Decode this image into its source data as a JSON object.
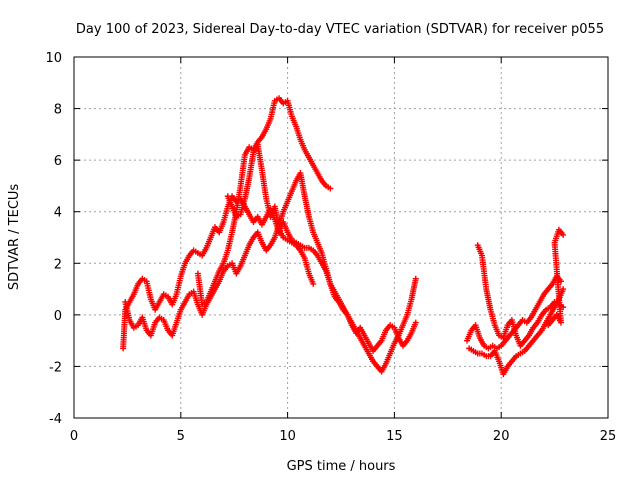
{
  "chart_data": {
    "type": "scatter",
    "title": "Day 100 of 2023, Sidereal Day-to-day VTEC variation (SDTVAR) for receiver p055",
    "xlabel": "GPS time / hours",
    "ylabel": "SDTVAR / TECUs",
    "xlim": [
      0,
      25
    ],
    "ylim": [
      -4,
      10
    ],
    "x_ticks": [
      0,
      5,
      10,
      15,
      20,
      25
    ],
    "y_ticks": [
      -4,
      -2,
      0,
      2,
      4,
      6,
      8,
      10
    ],
    "grid": true,
    "marker": "+",
    "color": "#ff0000",
    "series": [
      {
        "points": [
          [
            2.3,
            -1.3
          ],
          [
            2.4,
            0.2
          ],
          [
            2.6,
            0.5
          ],
          [
            2.8,
            0.8
          ],
          [
            3.0,
            1.2
          ],
          [
            3.2,
            1.4
          ],
          [
            3.4,
            1.3
          ],
          [
            3.6,
            0.6
          ],
          [
            3.8,
            0.2
          ],
          [
            4.0,
            0.5
          ],
          [
            4.2,
            0.8
          ],
          [
            4.4,
            0.7
          ],
          [
            4.6,
            0.4
          ],
          [
            4.8,
            0.8
          ],
          [
            5.0,
            1.5
          ],
          [
            5.2,
            2.0
          ],
          [
            5.4,
            2.3
          ],
          [
            5.6,
            2.5
          ],
          [
            5.8,
            2.4
          ],
          [
            6.0,
            2.3
          ],
          [
            6.2,
            2.6
          ],
          [
            6.4,
            3.0
          ],
          [
            6.6,
            3.4
          ],
          [
            6.8,
            3.2
          ],
          [
            7.0,
            3.6
          ],
          [
            7.2,
            4.2
          ],
          [
            7.4,
            4.6
          ],
          [
            7.6,
            4.4
          ],
          [
            7.8,
            4.5
          ],
          [
            8.0,
            4.2
          ],
          [
            8.2,
            3.9
          ],
          [
            8.4,
            3.6
          ],
          [
            8.6,
            3.8
          ],
          [
            8.8,
            3.5
          ],
          [
            9.0,
            3.8
          ],
          [
            9.2,
            4.1
          ],
          [
            9.4,
            3.7
          ],
          [
            9.6,
            3.2
          ],
          [
            9.8,
            3.6
          ],
          [
            10.0,
            3.2
          ],
          [
            10.2,
            2.9
          ],
          [
            10.4,
            2.8
          ],
          [
            10.6,
            2.7
          ],
          [
            10.8,
            2.6
          ],
          [
            11.0,
            2.6
          ],
          [
            11.2,
            2.5
          ],
          [
            11.4,
            2.3
          ],
          [
            11.6,
            2.0
          ],
          [
            11.8,
            1.7
          ],
          [
            12.0,
            1.2
          ],
          [
            12.2,
            0.9
          ],
          [
            12.4,
            0.6
          ],
          [
            12.6,
            0.3
          ],
          [
            12.8,
            0.0
          ],
          [
            13.0,
            -0.3
          ],
          [
            13.2,
            -0.6
          ],
          [
            13.4,
            -0.9
          ],
          [
            13.6,
            -1.2
          ],
          [
            13.8,
            -1.5
          ],
          [
            14.0,
            -1.8
          ],
          [
            14.2,
            -2.0
          ],
          [
            14.4,
            -2.2
          ],
          [
            14.6,
            -1.9
          ],
          [
            14.8,
            -1.5
          ],
          [
            15.0,
            -1.1
          ],
          [
            15.2,
            -0.8
          ],
          [
            15.4,
            -0.4
          ],
          [
            15.6,
            0.0
          ],
          [
            15.8,
            0.6
          ],
          [
            16.0,
            1.4
          ]
        ]
      },
      {
        "points": [
          [
            2.4,
            0.5
          ],
          [
            2.6,
            -0.2
          ],
          [
            2.8,
            -0.5
          ],
          [
            3.0,
            -0.4
          ],
          [
            3.2,
            -0.1
          ],
          [
            3.4,
            -0.6
          ],
          [
            3.6,
            -0.8
          ],
          [
            3.8,
            -0.3
          ],
          [
            4.0,
            -0.1
          ],
          [
            4.2,
            -0.2
          ],
          [
            4.4,
            -0.6
          ],
          [
            4.6,
            -0.8
          ],
          [
            4.8,
            -0.3
          ],
          [
            5.0,
            0.2
          ],
          [
            5.2,
            0.5
          ],
          [
            5.4,
            0.8
          ],
          [
            5.6,
            0.9
          ],
          [
            5.8,
            0.4
          ],
          [
            6.0,
            0.0
          ],
          [
            6.2,
            0.4
          ],
          [
            6.4,
            0.7
          ],
          [
            6.6,
            1.0
          ],
          [
            6.8,
            1.3
          ],
          [
            7.0,
            1.7
          ],
          [
            7.2,
            1.9
          ],
          [
            7.4,
            2.0
          ],
          [
            7.6,
            1.6
          ],
          [
            7.8,
            1.9
          ],
          [
            8.0,
            2.3
          ],
          [
            8.2,
            2.7
          ],
          [
            8.4,
            3.0
          ],
          [
            8.6,
            3.2
          ],
          [
            8.8,
            2.8
          ],
          [
            9.0,
            2.5
          ],
          [
            9.2,
            2.7
          ],
          [
            9.4,
            3.0
          ],
          [
            9.6,
            3.5
          ],
          [
            9.8,
            4.0
          ],
          [
            10.0,
            4.4
          ],
          [
            10.2,
            4.8
          ],
          [
            10.4,
            5.2
          ],
          [
            10.6,
            5.5
          ],
          [
            10.8,
            4.6
          ],
          [
            11.0,
            3.8
          ],
          [
            11.2,
            3.2
          ],
          [
            11.4,
            2.8
          ],
          [
            11.6,
            2.4
          ],
          [
            11.8,
            1.8
          ],
          [
            12.0,
            1.2
          ],
          [
            12.2,
            0.7
          ],
          [
            12.4,
            0.5
          ],
          [
            12.6,
            0.2
          ],
          [
            12.8,
            0.0
          ],
          [
            13.0,
            -0.4
          ],
          [
            13.2,
            -0.7
          ],
          [
            13.4,
            -0.5
          ],
          [
            13.6,
            -0.8
          ],
          [
            13.8,
            -1.1
          ],
          [
            14.0,
            -1.4
          ],
          [
            14.2,
            -1.2
          ],
          [
            14.4,
            -1.0
          ],
          [
            14.6,
            -0.6
          ],
          [
            14.8,
            -0.4
          ],
          [
            15.0,
            -0.5
          ],
          [
            15.2,
            -0.9
          ],
          [
            15.4,
            -1.2
          ],
          [
            15.6,
            -1.0
          ],
          [
            15.8,
            -0.7
          ],
          [
            16.0,
            -0.3
          ]
        ]
      },
      {
        "points": [
          [
            5.8,
            1.6
          ],
          [
            6.0,
            0.4
          ],
          [
            6.2,
            0.5
          ],
          [
            6.4,
            0.9
          ],
          [
            6.6,
            1.3
          ],
          [
            6.8,
            1.7
          ],
          [
            7.0,
            2.0
          ],
          [
            7.2,
            2.5
          ],
          [
            7.4,
            3.2
          ],
          [
            7.6,
            4.0
          ],
          [
            7.8,
            5.0
          ],
          [
            8.0,
            6.2
          ],
          [
            8.2,
            6.5
          ],
          [
            8.4,
            6.4
          ],
          [
            8.6,
            6.7
          ],
          [
            8.8,
            6.9
          ],
          [
            9.0,
            7.2
          ],
          [
            9.2,
            7.6
          ],
          [
            9.4,
            8.3
          ],
          [
            9.6,
            8.4
          ],
          [
            9.8,
            8.2
          ],
          [
            10.0,
            8.3
          ],
          [
            10.2,
            7.7
          ],
          [
            10.4,
            7.3
          ],
          [
            10.6,
            6.8
          ],
          [
            10.8,
            6.4
          ],
          [
            11.0,
            6.1
          ],
          [
            11.2,
            5.8
          ],
          [
            11.4,
            5.5
          ],
          [
            11.6,
            5.2
          ],
          [
            11.8,
            5.0
          ],
          [
            12.0,
            4.9
          ]
        ]
      },
      {
        "points": [
          [
            7.2,
            4.6
          ],
          [
            7.4,
            4.2
          ],
          [
            7.6,
            3.8
          ],
          [
            7.8,
            3.9
          ],
          [
            8.0,
            4.5
          ],
          [
            8.2,
            5.3
          ],
          [
            8.4,
            6.3
          ],
          [
            8.6,
            6.6
          ],
          [
            8.8,
            5.6
          ],
          [
            9.0,
            4.5
          ],
          [
            9.2,
            3.8
          ],
          [
            9.4,
            4.2
          ],
          [
            9.6,
            3.3
          ],
          [
            9.8,
            3.0
          ],
          [
            10.0,
            2.9
          ],
          [
            10.2,
            2.8
          ],
          [
            10.4,
            2.7
          ],
          [
            10.6,
            2.5
          ],
          [
            10.8,
            2.2
          ],
          [
            11.0,
            1.6
          ],
          [
            11.2,
            1.2
          ]
        ]
      },
      {
        "points": [
          [
            18.4,
            -1.0
          ],
          [
            18.6,
            -0.6
          ],
          [
            18.8,
            -0.4
          ],
          [
            19.0,
            -0.9
          ],
          [
            19.2,
            -1.2
          ],
          [
            19.4,
            -1.3
          ],
          [
            19.6,
            -1.2
          ],
          [
            19.8,
            -1.3
          ],
          [
            20.0,
            -1.2
          ],
          [
            20.2,
            -1.0
          ],
          [
            20.4,
            -0.8
          ],
          [
            20.6,
            -0.6
          ],
          [
            20.8,
            -0.4
          ],
          [
            21.0,
            -0.2
          ],
          [
            21.2,
            -0.3
          ],
          [
            21.4,
            -0.1
          ],
          [
            21.6,
            0.2
          ],
          [
            21.8,
            0.5
          ],
          [
            22.0,
            0.8
          ],
          [
            22.2,
            1.0
          ],
          [
            22.4,
            1.2
          ],
          [
            22.6,
            1.5
          ],
          [
            22.8,
            1.3
          ]
        ]
      },
      {
        "points": [
          [
            18.5,
            -1.3
          ],
          [
            18.7,
            -1.4
          ],
          [
            18.9,
            -1.5
          ],
          [
            19.1,
            -1.5
          ],
          [
            19.3,
            -1.6
          ],
          [
            19.5,
            -1.6
          ],
          [
            19.7,
            -1.4
          ],
          [
            19.9,
            -1.8
          ],
          [
            20.1,
            -2.3
          ],
          [
            20.3,
            -2.0
          ],
          [
            20.5,
            -1.8
          ],
          [
            20.7,
            -1.6
          ],
          [
            20.9,
            -1.5
          ],
          [
            21.1,
            -1.4
          ],
          [
            21.3,
            -1.2
          ],
          [
            21.5,
            -1.0
          ],
          [
            21.7,
            -0.8
          ],
          [
            21.9,
            -0.6
          ],
          [
            22.1,
            -0.3
          ],
          [
            22.3,
            0.0
          ],
          [
            22.5,
            0.3
          ],
          [
            22.7,
            0.6
          ],
          [
            22.9,
            1.0
          ]
        ]
      },
      {
        "points": [
          [
            18.9,
            2.7
          ],
          [
            19.1,
            2.3
          ],
          [
            19.3,
            1.0
          ],
          [
            19.5,
            0.2
          ],
          [
            19.7,
            -0.4
          ],
          [
            19.9,
            -0.8
          ],
          [
            20.1,
            -0.9
          ],
          [
            20.3,
            -0.4
          ],
          [
            20.5,
            -0.2
          ],
          [
            20.7,
            -0.8
          ],
          [
            20.9,
            -1.2
          ],
          [
            21.1,
            -1.0
          ],
          [
            21.3,
            -0.8
          ],
          [
            21.5,
            -0.5
          ],
          [
            21.7,
            -0.3
          ],
          [
            21.9,
            0.0
          ],
          [
            22.1,
            0.2
          ],
          [
            22.3,
            0.3
          ],
          [
            22.5,
            0.5
          ],
          [
            22.7,
            0.4
          ],
          [
            22.9,
            0.3
          ]
        ]
      },
      {
        "points": [
          [
            22.2,
            -0.4
          ],
          [
            22.4,
            -0.2
          ],
          [
            22.6,
            0.0
          ],
          [
            22.8,
            -0.3
          ],
          [
            22.5,
            2.8
          ],
          [
            22.7,
            3.3
          ],
          [
            22.9,
            3.1
          ]
        ]
      }
    ]
  }
}
